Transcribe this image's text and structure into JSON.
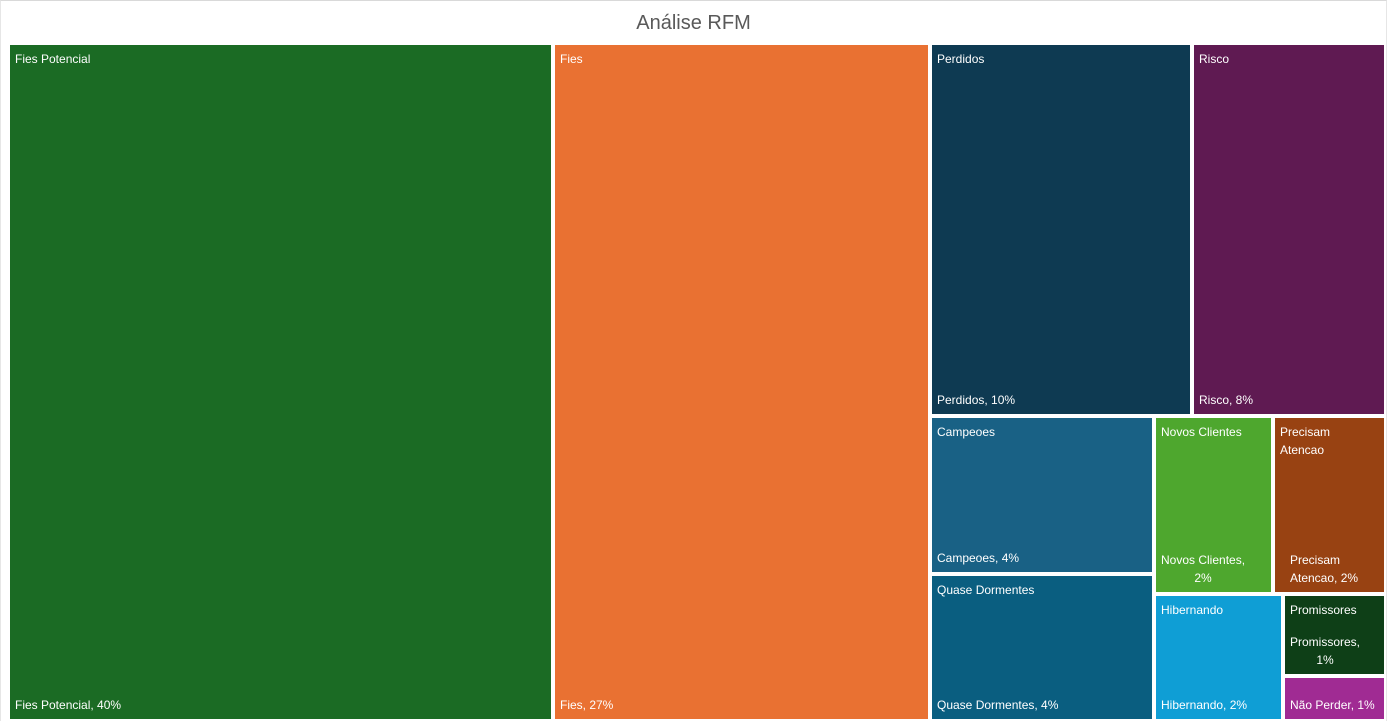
{
  "chart_data": {
    "type": "treemap",
    "title": "Análise RFM",
    "items": [
      {
        "name": "Fies Potencial",
        "percent": 40,
        "label": "Fies Potencial, 40%",
        "color": "#1b6b24"
      },
      {
        "name": "Fies",
        "percent": 27,
        "label": "Fies, 27%",
        "color": "#e97132"
      },
      {
        "name": "Perdidos",
        "percent": 10,
        "label": "Perdidos, 10%",
        "color": "#0e3a52"
      },
      {
        "name": "Risco",
        "percent": 8,
        "label": "Risco, 8%",
        "color": "#5f1a52"
      },
      {
        "name": "Campeoes",
        "percent": 4,
        "label": "Campeoes, 4%",
        "color": "#196185"
      },
      {
        "name": "Quase Dormentes",
        "percent": 4,
        "label": "Quase Dormentes, 4%",
        "color": "#0a5e80"
      },
      {
        "name": "Novos Clientes",
        "percent": 2,
        "label": "Novos Clientes,\n2%",
        "color": "#4ea72e"
      },
      {
        "name": "Precisam\nAtencao",
        "percent": 2,
        "label": "Precisam\nAtencao, 2%",
        "color": "#984212"
      },
      {
        "name": "Hibernando",
        "percent": 2,
        "label": "Hibernando, 2%",
        "color": "#0f9ed5"
      },
      {
        "name": "Promissores",
        "percent": 1,
        "label": "Promissores,\n1%",
        "color": "#0e3f17"
      },
      {
        "name": "",
        "percent": 1,
        "label": "Não Perder, 1%",
        "color": "#a02b93"
      }
    ]
  }
}
